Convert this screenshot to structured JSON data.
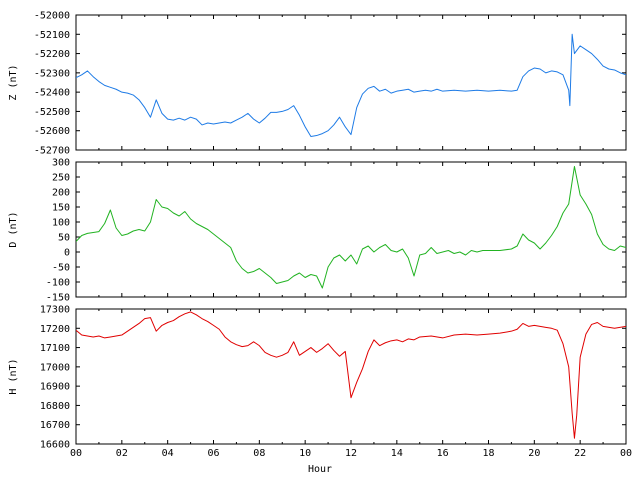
{
  "chart_data": {
    "type": "line",
    "xlabel": "Hour",
    "x_tick_labels": [
      "00",
      "02",
      "04",
      "06",
      "08",
      "10",
      "12",
      "14",
      "16",
      "18",
      "20",
      "22",
      "00"
    ],
    "xlim_hours": [
      0,
      24
    ],
    "panels": [
      {
        "name": "Z",
        "ylabel": "Z (nT)",
        "color": "#1e7be6",
        "ylim": [
          -52700,
          -52000
        ],
        "yticks": [
          -52000,
          -52100,
          -52200,
          -52300,
          -52400,
          -52500,
          -52600,
          -52700
        ],
        "series": [
          [
            0.0,
            -52325
          ],
          [
            0.25,
            -52310
          ],
          [
            0.5,
            -52290
          ],
          [
            0.75,
            -52320
          ],
          [
            1.0,
            -52345
          ],
          [
            1.25,
            -52365
          ],
          [
            1.5,
            -52375
          ],
          [
            1.75,
            -52385
          ],
          [
            2.0,
            -52400
          ],
          [
            2.25,
            -52405
          ],
          [
            2.5,
            -52415
          ],
          [
            2.75,
            -52440
          ],
          [
            3.0,
            -52480
          ],
          [
            3.25,
            -52530
          ],
          [
            3.5,
            -52440
          ],
          [
            3.75,
            -52510
          ],
          [
            4.0,
            -52540
          ],
          [
            4.25,
            -52545
          ],
          [
            4.5,
            -52535
          ],
          [
            4.75,
            -52545
          ],
          [
            5.0,
            -52530
          ],
          [
            5.25,
            -52540
          ],
          [
            5.5,
            -52570
          ],
          [
            5.75,
            -52560
          ],
          [
            6.0,
            -52565
          ],
          [
            6.25,
            -52560
          ],
          [
            6.5,
            -52555
          ],
          [
            6.75,
            -52560
          ],
          [
            7.0,
            -52545
          ],
          [
            7.25,
            -52530
          ],
          [
            7.5,
            -52510
          ],
          [
            7.75,
            -52540
          ],
          [
            8.0,
            -52560
          ],
          [
            8.25,
            -52535
          ],
          [
            8.5,
            -52505
          ],
          [
            8.75,
            -52505
          ],
          [
            9.0,
            -52500
          ],
          [
            9.25,
            -52490
          ],
          [
            9.5,
            -52470
          ],
          [
            9.75,
            -52520
          ],
          [
            10.0,
            -52580
          ],
          [
            10.25,
            -52630
          ],
          [
            10.5,
            -52625
          ],
          [
            10.75,
            -52615
          ],
          [
            11.0,
            -52600
          ],
          [
            11.25,
            -52570
          ],
          [
            11.5,
            -52530
          ],
          [
            11.75,
            -52580
          ],
          [
            12.0,
            -52620
          ],
          [
            12.25,
            -52480
          ],
          [
            12.5,
            -52410
          ],
          [
            12.75,
            -52380
          ],
          [
            13.0,
            -52370
          ],
          [
            13.25,
            -52395
          ],
          [
            13.5,
            -52385
          ],
          [
            13.75,
            -52405
          ],
          [
            14.0,
            -52395
          ],
          [
            14.25,
            -52390
          ],
          [
            14.5,
            -52385
          ],
          [
            14.75,
            -52400
          ],
          [
            15.0,
            -52395
          ],
          [
            15.25,
            -52390
          ],
          [
            15.5,
            -52395
          ],
          [
            15.75,
            -52385
          ],
          [
            16.0,
            -52395
          ],
          [
            16.5,
            -52390
          ],
          [
            17.0,
            -52395
          ],
          [
            17.5,
            -52390
          ],
          [
            18.0,
            -52395
          ],
          [
            18.5,
            -52390
          ],
          [
            19.0,
            -52395
          ],
          [
            19.25,
            -52390
          ],
          [
            19.5,
            -52320
          ],
          [
            19.75,
            -52290
          ],
          [
            20.0,
            -52275
          ],
          [
            20.25,
            -52280
          ],
          [
            20.5,
            -52300
          ],
          [
            20.75,
            -52290
          ],
          [
            21.0,
            -52295
          ],
          [
            21.25,
            -52310
          ],
          [
            21.5,
            -52390
          ],
          [
            21.55,
            -52470
          ],
          [
            21.65,
            -52100
          ],
          [
            21.75,
            -52200
          ],
          [
            22.0,
            -52160
          ],
          [
            22.25,
            -52180
          ],
          [
            22.5,
            -52200
          ],
          [
            22.75,
            -52230
          ],
          [
            23.0,
            -52265
          ],
          [
            23.25,
            -52280
          ],
          [
            23.5,
            -52285
          ],
          [
            23.75,
            -52300
          ],
          [
            24.0,
            -52310
          ]
        ]
      },
      {
        "name": "D",
        "ylabel": "D (nT)",
        "color": "#22b322",
        "ylim": [
          -150,
          300
        ],
        "yticks": [
          300,
          250,
          200,
          150,
          100,
          50,
          0,
          -50,
          -100,
          -150
        ],
        "series": [
          [
            0.0,
            35
          ],
          [
            0.25,
            55
          ],
          [
            0.5,
            62
          ],
          [
            0.75,
            65
          ],
          [
            1.0,
            68
          ],
          [
            1.25,
            95
          ],
          [
            1.5,
            140
          ],
          [
            1.75,
            80
          ],
          [
            2.0,
            55
          ],
          [
            2.25,
            60
          ],
          [
            2.5,
            70
          ],
          [
            2.75,
            75
          ],
          [
            3.0,
            70
          ],
          [
            3.25,
            100
          ],
          [
            3.5,
            175
          ],
          [
            3.75,
            150
          ],
          [
            4.0,
            145
          ],
          [
            4.25,
            130
          ],
          [
            4.5,
            120
          ],
          [
            4.75,
            135
          ],
          [
            5.0,
            110
          ],
          [
            5.25,
            95
          ],
          [
            5.5,
            85
          ],
          [
            5.75,
            75
          ],
          [
            6.0,
            60
          ],
          [
            6.25,
            45
          ],
          [
            6.5,
            30
          ],
          [
            6.75,
            15
          ],
          [
            7.0,
            -30
          ],
          [
            7.25,
            -55
          ],
          [
            7.5,
            -70
          ],
          [
            7.75,
            -65
          ],
          [
            8.0,
            -55
          ],
          [
            8.25,
            -70
          ],
          [
            8.5,
            -85
          ],
          [
            8.75,
            -105
          ],
          [
            9.0,
            -100
          ],
          [
            9.25,
            -95
          ],
          [
            9.5,
            -80
          ],
          [
            9.75,
            -70
          ],
          [
            10.0,
            -85
          ],
          [
            10.25,
            -75
          ],
          [
            10.5,
            -80
          ],
          [
            10.75,
            -120
          ],
          [
            11.0,
            -50
          ],
          [
            11.25,
            -20
          ],
          [
            11.5,
            -10
          ],
          [
            11.75,
            -30
          ],
          [
            12.0,
            -10
          ],
          [
            12.25,
            -40
          ],
          [
            12.5,
            10
          ],
          [
            12.75,
            20
          ],
          [
            13.0,
            0
          ],
          [
            13.25,
            15
          ],
          [
            13.5,
            25
          ],
          [
            13.75,
            5
          ],
          [
            14.0,
            0
          ],
          [
            14.25,
            10
          ],
          [
            14.5,
            -20
          ],
          [
            14.75,
            -80
          ],
          [
            15.0,
            -10
          ],
          [
            15.25,
            -5
          ],
          [
            15.5,
            15
          ],
          [
            15.75,
            -5
          ],
          [
            16.0,
            0
          ],
          [
            16.25,
            5
          ],
          [
            16.5,
            -5
          ],
          [
            16.75,
            0
          ],
          [
            17.0,
            -10
          ],
          [
            17.25,
            5
          ],
          [
            17.5,
            0
          ],
          [
            17.75,
            5
          ],
          [
            18.0,
            5
          ],
          [
            18.5,
            5
          ],
          [
            19.0,
            10
          ],
          [
            19.25,
            20
          ],
          [
            19.5,
            60
          ],
          [
            19.75,
            40
          ],
          [
            20.0,
            30
          ],
          [
            20.25,
            10
          ],
          [
            20.5,
            30
          ],
          [
            20.75,
            55
          ],
          [
            21.0,
            85
          ],
          [
            21.25,
            130
          ],
          [
            21.5,
            160
          ],
          [
            21.75,
            285
          ],
          [
            22.0,
            190
          ],
          [
            22.25,
            160
          ],
          [
            22.5,
            125
          ],
          [
            22.75,
            60
          ],
          [
            23.0,
            25
          ],
          [
            23.25,
            10
          ],
          [
            23.5,
            5
          ],
          [
            23.75,
            20
          ],
          [
            24.0,
            15
          ]
        ]
      },
      {
        "name": "H",
        "ylabel": "H (nT)",
        "color": "#e00000",
        "ylim": [
          16600,
          17300
        ],
        "yticks": [
          17300,
          17200,
          17100,
          17000,
          16900,
          16800,
          16700,
          16600
        ],
        "series": [
          [
            0.0,
            17190
          ],
          [
            0.25,
            17165
          ],
          [
            0.5,
            17160
          ],
          [
            0.75,
            17155
          ],
          [
            1.0,
            17160
          ],
          [
            1.25,
            17150
          ],
          [
            1.5,
            17155
          ],
          [
            1.75,
            17160
          ],
          [
            2.0,
            17165
          ],
          [
            2.25,
            17185
          ],
          [
            2.5,
            17205
          ],
          [
            2.75,
            17225
          ],
          [
            3.0,
            17250
          ],
          [
            3.25,
            17255
          ],
          [
            3.5,
            17185
          ],
          [
            3.75,
            17215
          ],
          [
            4.0,
            17230
          ],
          [
            4.25,
            17240
          ],
          [
            4.5,
            17260
          ],
          [
            4.75,
            17275
          ],
          [
            5.0,
            17285
          ],
          [
            5.25,
            17270
          ],
          [
            5.5,
            17250
          ],
          [
            5.75,
            17235
          ],
          [
            6.0,
            17215
          ],
          [
            6.25,
            17195
          ],
          [
            6.5,
            17155
          ],
          [
            6.75,
            17130
          ],
          [
            7.0,
            17115
          ],
          [
            7.25,
            17105
          ],
          [
            7.5,
            17110
          ],
          [
            7.75,
            17130
          ],
          [
            8.0,
            17110
          ],
          [
            8.25,
            17075
          ],
          [
            8.5,
            17060
          ],
          [
            8.75,
            17050
          ],
          [
            9.0,
            17060
          ],
          [
            9.25,
            17075
          ],
          [
            9.5,
            17130
          ],
          [
            9.75,
            17060
          ],
          [
            10.0,
            17080
          ],
          [
            10.25,
            17100
          ],
          [
            10.5,
            17075
          ],
          [
            10.75,
            17095
          ],
          [
            11.0,
            17120
          ],
          [
            11.25,
            17085
          ],
          [
            11.5,
            17055
          ],
          [
            11.75,
            17080
          ],
          [
            12.0,
            16840
          ],
          [
            12.25,
            16920
          ],
          [
            12.5,
            16990
          ],
          [
            12.75,
            17080
          ],
          [
            13.0,
            17140
          ],
          [
            13.25,
            17110
          ],
          [
            13.5,
            17125
          ],
          [
            13.75,
            17135
          ],
          [
            14.0,
            17140
          ],
          [
            14.25,
            17130
          ],
          [
            14.5,
            17145
          ],
          [
            14.75,
            17140
          ],
          [
            15.0,
            17155
          ],
          [
            15.5,
            17160
          ],
          [
            16.0,
            17150
          ],
          [
            16.5,
            17165
          ],
          [
            17.0,
            17170
          ],
          [
            17.5,
            17165
          ],
          [
            18.0,
            17170
          ],
          [
            18.5,
            17175
          ],
          [
            19.0,
            17185
          ],
          [
            19.25,
            17195
          ],
          [
            19.5,
            17225
          ],
          [
            19.75,
            17210
          ],
          [
            20.0,
            17215
          ],
          [
            20.25,
            17210
          ],
          [
            20.5,
            17205
          ],
          [
            20.75,
            17200
          ],
          [
            21.0,
            17190
          ],
          [
            21.25,
            17120
          ],
          [
            21.5,
            17000
          ],
          [
            21.65,
            16760
          ],
          [
            21.75,
            16630
          ],
          [
            21.85,
            16750
          ],
          [
            22.0,
            17050
          ],
          [
            22.25,
            17170
          ],
          [
            22.5,
            17220
          ],
          [
            22.75,
            17230
          ],
          [
            23.0,
            17210
          ],
          [
            23.5,
            17200
          ],
          [
            24.0,
            17210
          ]
        ]
      }
    ]
  }
}
